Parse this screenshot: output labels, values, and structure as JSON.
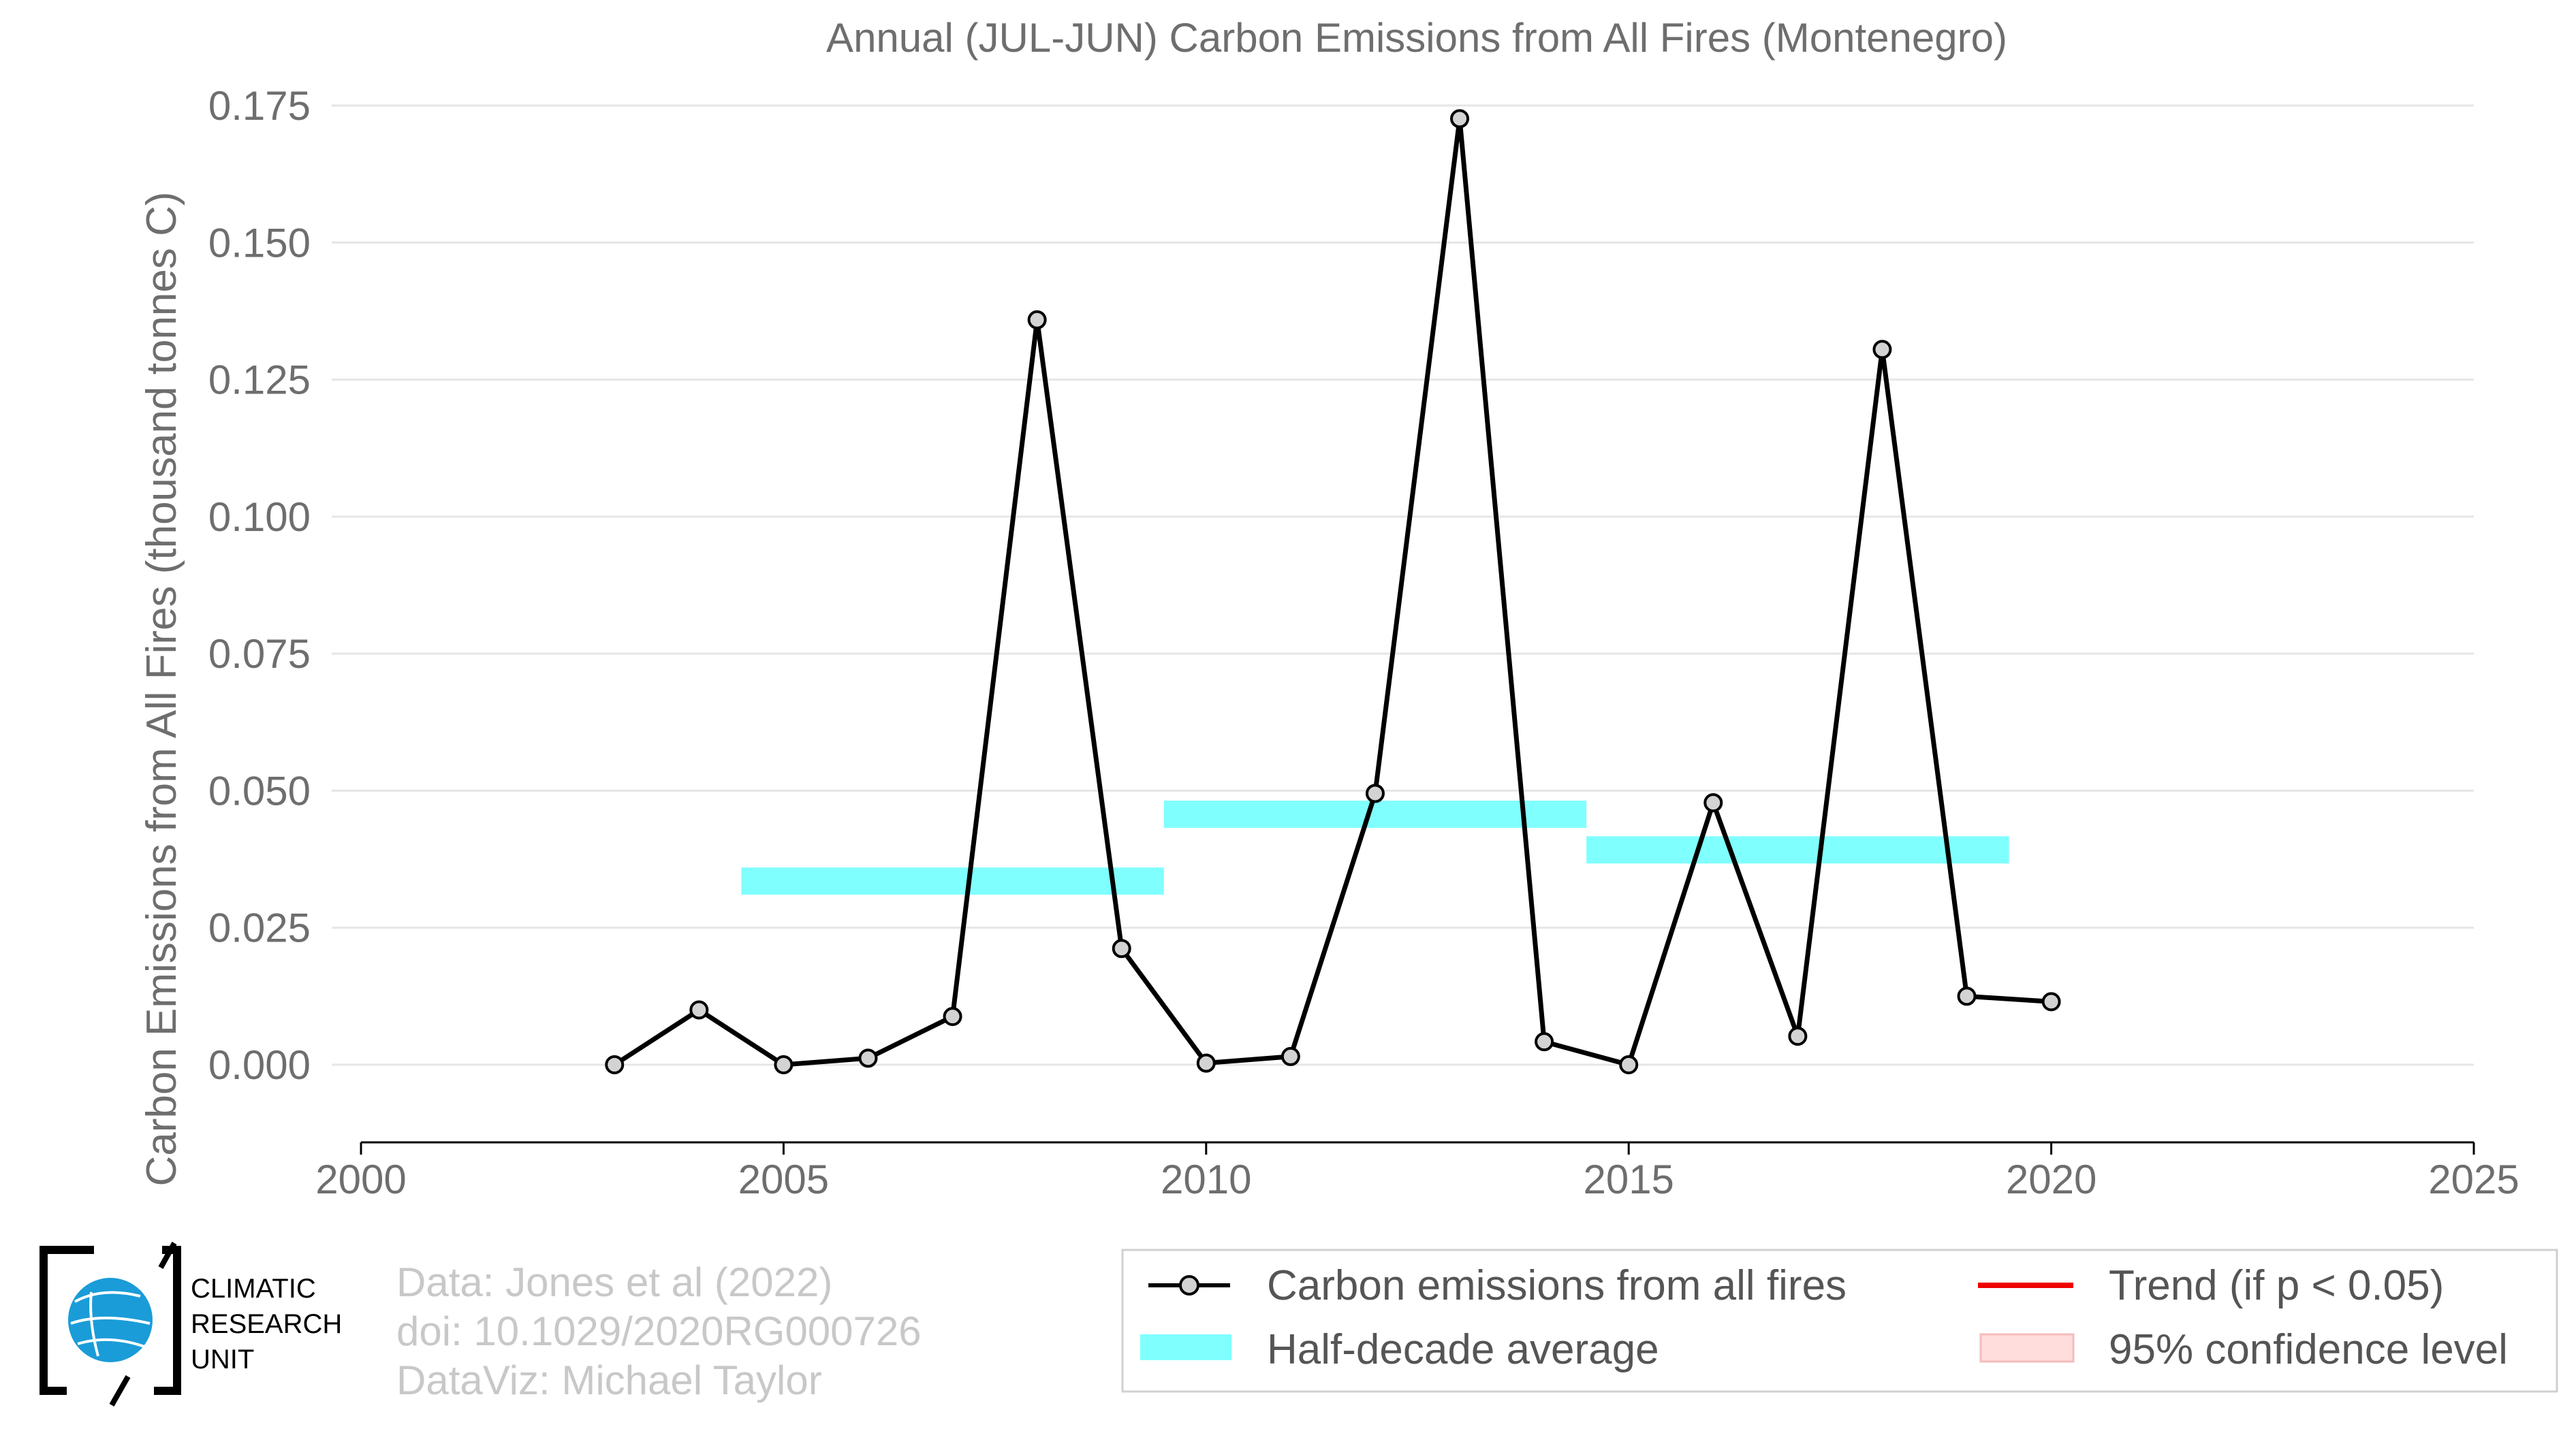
{
  "chart_data": {
    "type": "line",
    "title": "Annual (JUL-JUN) Carbon Emissions from All Fires (Montenegro)",
    "xlabel": "",
    "ylabel": "Carbon Emissions from All Fires (thousand tonnes C)",
    "xlim": [
      2000,
      2025
    ],
    "ylim": [
      -0.014,
      0.175
    ],
    "x_ticks": [
      "2000",
      "2005",
      "2010",
      "2015",
      "2020",
      "2025"
    ],
    "y_ticks": [
      "0.000",
      "0.025",
      "0.050",
      "0.075",
      "0.100",
      "0.125",
      "0.150",
      "0.175"
    ],
    "grid": "horizontal",
    "series": [
      {
        "name": "Carbon emissions from all fires",
        "color": "#000000",
        "x": [
          2003,
          2004,
          2005,
          2006,
          2007,
          2008,
          2009,
          2010,
          2011,
          2012,
          2013,
          2014,
          2015,
          2016,
          2017,
          2018,
          2019,
          2020
        ],
        "y": [
          0.0,
          0.01,
          0.0,
          0.0012,
          0.0088,
          0.1359,
          0.0212,
          0.0003,
          0.0015,
          0.0495,
          0.1726,
          0.0042,
          0.0,
          0.0478,
          0.0052,
          0.1305,
          0.0125,
          0.0115
        ]
      }
    ],
    "half_decade_average": {
      "name": "Half-decade average",
      "color": "#80ffff",
      "segments": [
        {
          "x0": 2004.5,
          "x1": 2009.5,
          "y": 0.0335
        },
        {
          "x0": 2009.5,
          "x1": 2014.5,
          "y": 0.0457
        },
        {
          "x0": 2014.5,
          "x1": 2019.5,
          "y": 0.0392
        }
      ]
    },
    "legend": {
      "placement": "bottom-right",
      "entries": [
        {
          "label": "Carbon emissions from all fires",
          "color": "#000000",
          "kind": "line-marker"
        },
        {
          "label": "Trend (if p < 0.05)",
          "color": "#ee0000",
          "kind": "line"
        },
        {
          "label": "Half-decade average",
          "color": "#80ffff",
          "kind": "patch"
        },
        {
          "label": "95% confidence level",
          "color": "#ffdddd",
          "kind": "patch"
        }
      ]
    }
  },
  "credits": {
    "line1": "Data: Jones et al (2022)",
    "line2": "doi: 10.1029/2020RG000726",
    "line3": "DataViz: Michael Taylor"
  },
  "logo": {
    "line1": "CLIMATIC",
    "line2": "RESEARCH",
    "line3": "UNIT"
  }
}
